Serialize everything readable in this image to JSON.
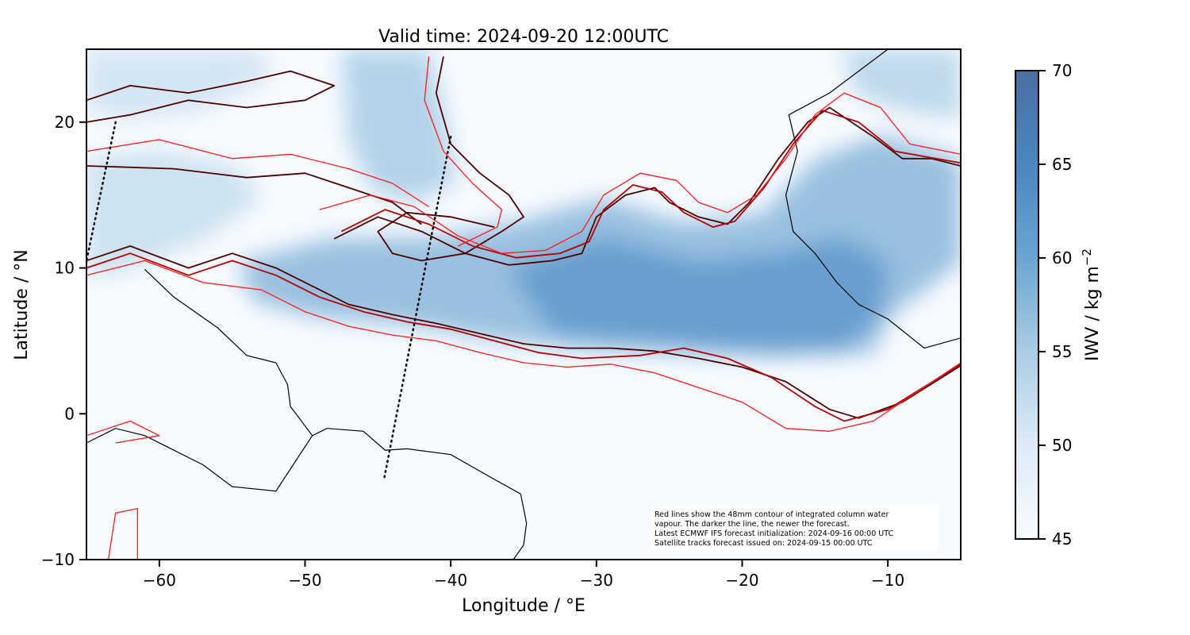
{
  "title": "Valid time: 2024-09-20 12:00UTC",
  "x_axis": {
    "label": "Longitude / °E",
    "ticks": [
      {
        "value": -60,
        "label": "−60"
      },
      {
        "value": -50,
        "label": "−50"
      },
      {
        "value": -40,
        "label": "−40"
      },
      {
        "value": -30,
        "label": "−30"
      },
      {
        "value": -20,
        "label": "−20"
      },
      {
        "value": -10,
        "label": "−10"
      }
    ]
  },
  "y_axis": {
    "label": "Latitude / °N",
    "ticks": [
      {
        "value": 20,
        "label": "20"
      },
      {
        "value": 10,
        "label": "10"
      },
      {
        "value": 0,
        "label": "0"
      },
      {
        "value": -10,
        "label": "−10"
      }
    ]
  },
  "colorbar": {
    "label": "IWV / kg m",
    "label_superscript": "−2",
    "ticks": [
      {
        "value": 70,
        "label": "70"
      },
      {
        "value": 65,
        "label": "65"
      },
      {
        "value": 60,
        "label": "60"
      },
      {
        "value": 55,
        "label": "55"
      },
      {
        "value": 50,
        "label": "50"
      },
      {
        "value": 45,
        "label": "45"
      }
    ],
    "low_color": "#f7fbff",
    "high_color": "#4a6fa0"
  },
  "note": {
    "lines": [
      "Red lines show the 48mm contour of integrated column water",
      "vapour. The darker the line, the newer the forecast.",
      "Latest ECMWF IFS forecast initialization: 2024-09-16 00:00 UTC",
      "Satellite tracks forecast issued on: 2024-09-15 00:00 UTC"
    ]
  },
  "chart_data": {
    "type": "heatmap",
    "xlim": [
      -65,
      -5
    ],
    "ylim": [
      -10,
      25
    ],
    "grid": false,
    "colors": {
      "contour_oldest": "#ff1a1a",
      "contour_mid": "#b30000",
      "contour_newest": "#4d0000",
      "coastline": "#000000",
      "satellite_track": "#000000"
    },
    "satellite_tracks": [
      {
        "points": [
          [
            -63.0,
            20.0
          ],
          [
            -65.0,
            10.5
          ]
        ]
      },
      {
        "points": [
          [
            -40.0,
            19.0
          ],
          [
            -44.6,
            -4.6
          ]
        ]
      }
    ],
    "contours": [
      {
        "shade": "newest",
        "points": [
          [
            -65,
            10.5
          ],
          [
            -62,
            11.5
          ],
          [
            -58,
            10
          ],
          [
            -55,
            11
          ],
          [
            -52,
            10
          ],
          [
            -49,
            8.5
          ],
          [
            -47,
            7.5
          ],
          [
            -44,
            6.8
          ],
          [
            -41,
            6.2
          ],
          [
            -38,
            5.5
          ],
          [
            -35,
            4.8
          ],
          [
            -32,
            4.5
          ],
          [
            -29,
            4.5
          ],
          [
            -26,
            4.3
          ],
          [
            -23,
            3.8
          ],
          [
            -20,
            3.2
          ],
          [
            -17,
            2.2
          ],
          [
            -14,
            0.3
          ],
          [
            -12,
            -0.3
          ],
          [
            -9,
            0.8
          ],
          [
            -5,
            3.3
          ]
        ]
      },
      {
        "shade": "newest",
        "points": [
          [
            -48,
            12
          ],
          [
            -45,
            13.5
          ],
          [
            -42,
            12.5
          ],
          [
            -39,
            11
          ],
          [
            -36,
            10.2
          ],
          [
            -33,
            10.5
          ],
          [
            -31,
            11
          ],
          [
            -30,
            13.5
          ],
          [
            -28,
            15
          ],
          [
            -26,
            15.5
          ],
          [
            -25,
            14.5
          ],
          [
            -23,
            13.5
          ],
          [
            -21,
            13
          ],
          [
            -19.5,
            14.5
          ],
          [
            -17.5,
            17.5
          ],
          [
            -15.5,
            20
          ],
          [
            -14,
            21
          ],
          [
            -11,
            19
          ],
          [
            -9,
            17.5
          ],
          [
            -7,
            17.5
          ],
          [
            -5,
            17
          ]
        ]
      },
      {
        "shade": "newest",
        "points": [
          [
            -65,
            17
          ],
          [
            -59,
            16.8
          ],
          [
            -54,
            16.2
          ],
          [
            -50,
            16.5
          ],
          [
            -47,
            15.5
          ],
          [
            -44,
            14.5
          ],
          [
            -42,
            13
          ]
        ]
      },
      {
        "shade": "newest",
        "points": [
          [
            -40.5,
            24.5
          ],
          [
            -41,
            22
          ],
          [
            -40,
            18.5
          ],
          [
            -38,
            16.5
          ],
          [
            -36,
            15
          ],
          [
            -35,
            13.5
          ],
          [
            -36.5,
            12.5
          ],
          [
            -39,
            11
          ],
          [
            -42,
            10.5
          ],
          [
            -44,
            11
          ],
          [
            -45,
            12.5
          ],
          [
            -43,
            13.8
          ],
          [
            -40,
            13.5
          ],
          [
            -37,
            12.8
          ]
        ]
      },
      {
        "shade": "newest",
        "points": [
          [
            -65,
            21.5
          ],
          [
            -62,
            22.5
          ],
          [
            -58,
            22
          ],
          [
            -54,
            22.8
          ],
          [
            -51,
            23.5
          ],
          [
            -48,
            22.5
          ],
          [
            -50,
            21.5
          ],
          [
            -54,
            21
          ],
          [
            -58,
            21.5
          ],
          [
            -62,
            20.5
          ],
          [
            -65,
            20
          ]
        ]
      },
      {
        "shade": "mid",
        "points": [
          [
            -65,
            10
          ],
          [
            -62,
            11
          ],
          [
            -58,
            9.5
          ],
          [
            -55,
            10.5
          ],
          [
            -52,
            9.5
          ],
          [
            -49,
            8
          ],
          [
            -46,
            7
          ],
          [
            -43,
            6.3
          ],
          [
            -40,
            5.8
          ],
          [
            -37,
            5
          ],
          [
            -34,
            4.2
          ],
          [
            -31,
            3.8
          ],
          [
            -27,
            4
          ],
          [
            -24,
            4.5
          ],
          [
            -21,
            3.8
          ],
          [
            -18,
            2.5
          ],
          [
            -15,
            0.5
          ],
          [
            -13,
            -0.5
          ],
          [
            -10,
            0.3
          ],
          [
            -5,
            3.4
          ]
        ]
      },
      {
        "shade": "mid",
        "points": [
          [
            -47.5,
            12.5
          ],
          [
            -44.5,
            14
          ],
          [
            -41.5,
            13
          ],
          [
            -38.5,
            11.5
          ],
          [
            -35.5,
            10.7
          ],
          [
            -32.5,
            11
          ],
          [
            -30.5,
            11.8
          ],
          [
            -29.5,
            14
          ],
          [
            -27.5,
            15.7
          ],
          [
            -25.5,
            15.2
          ],
          [
            -24,
            13.8
          ],
          [
            -22,
            12.8
          ],
          [
            -20.5,
            13.2
          ],
          [
            -18.5,
            15.5
          ],
          [
            -16.5,
            18.5
          ],
          [
            -14.5,
            20.8
          ],
          [
            -12,
            20
          ],
          [
            -9.5,
            18
          ],
          [
            -5,
            17.2
          ]
        ]
      },
      {
        "shade": "oldest",
        "points": [
          [
            -65,
            9.5
          ],
          [
            -61,
            10.5
          ],
          [
            -57,
            9
          ],
          [
            -53,
            8.5
          ],
          [
            -50,
            7
          ],
          [
            -47,
            6
          ],
          [
            -44,
            5.4
          ],
          [
            -41,
            5
          ],
          [
            -38,
            4.2
          ],
          [
            -35,
            3.5
          ],
          [
            -32,
            3.2
          ],
          [
            -29,
            3.4
          ],
          [
            -26,
            2.8
          ],
          [
            -23,
            1.8
          ],
          [
            -20,
            0.8
          ],
          [
            -17,
            -1
          ],
          [
            -14,
            -1.2
          ],
          [
            -11,
            -0.5
          ],
          [
            -8,
            1.5
          ],
          [
            -5,
            3.5
          ]
        ]
      },
      {
        "shade": "oldest",
        "points": [
          [
            -49,
            14
          ],
          [
            -45.5,
            15
          ],
          [
            -42.5,
            14.2
          ],
          [
            -39.5,
            12.2
          ],
          [
            -36.5,
            11
          ],
          [
            -33.5,
            11.2
          ],
          [
            -31,
            12.5
          ],
          [
            -29.5,
            15
          ],
          [
            -27,
            16.5
          ],
          [
            -24.5,
            16
          ],
          [
            -23,
            14.5
          ],
          [
            -21,
            13.8
          ],
          [
            -19,
            15
          ],
          [
            -17,
            17.5
          ],
          [
            -15,
            20.5
          ],
          [
            -13,
            22
          ],
          [
            -10.5,
            21
          ],
          [
            -8.5,
            18.5
          ],
          [
            -5,
            17.8
          ]
        ]
      },
      {
        "shade": "oldest",
        "points": [
          [
            -65,
            18
          ],
          [
            -60,
            18.8
          ],
          [
            -55,
            17.5
          ],
          [
            -51,
            17.8
          ],
          [
            -47,
            16.8
          ],
          [
            -44,
            15.8
          ],
          [
            -41.5,
            14.2
          ]
        ]
      },
      {
        "shade": "oldest",
        "points": [
          [
            -41.5,
            24.5
          ],
          [
            -41.8,
            21.5
          ],
          [
            -40.5,
            18
          ],
          [
            -38.5,
            15.8
          ],
          [
            -36.5,
            14
          ],
          [
            -36.8,
            12.8
          ],
          [
            -39.5,
            11.5
          ]
        ]
      },
      {
        "shade": "oldest",
        "points": [
          [
            -65,
            -1.5
          ],
          [
            -62,
            -0.5
          ],
          [
            -60,
            -1.5
          ],
          [
            -63,
            -2
          ]
        ]
      },
      {
        "shade": "oldest",
        "points": [
          [
            -63.5,
            -10
          ],
          [
            -63,
            -6.8
          ],
          [
            -61.5,
            -6.5
          ],
          [
            -61.5,
            -10
          ]
        ]
      }
    ],
    "coastlines": [
      {
        "points": [
          [
            -65,
            -2
          ],
          [
            -63,
            -1
          ],
          [
            -61,
            -1.5
          ],
          [
            -59,
            -2.5
          ],
          [
            -57,
            -3.5
          ],
          [
            -55,
            -5
          ],
          [
            -52,
            -5.3
          ],
          [
            -49.5,
            -1.5
          ],
          [
            -48.5,
            -1
          ],
          [
            -46,
            -1.2
          ],
          [
            -44.5,
            -2.5
          ],
          [
            -43,
            -2.4
          ],
          [
            -40,
            -2.8
          ],
          [
            -37,
            -4.5
          ],
          [
            -35.2,
            -5.5
          ],
          [
            -34.8,
            -7.5
          ],
          [
            -35,
            -9
          ],
          [
            -35.7,
            -10
          ]
        ]
      },
      {
        "points": [
          [
            -49.5,
            -1.5
          ],
          [
            -51,
            0.5
          ],
          [
            -51.2,
            2
          ],
          [
            -52,
            3.5
          ],
          [
            -54,
            4
          ],
          [
            -56,
            5.9
          ],
          [
            -59,
            8
          ],
          [
            -61,
            9.9
          ]
        ]
      },
      {
        "points": [
          [
            -10,
            25
          ],
          [
            -14,
            22
          ],
          [
            -16.8,
            20.5
          ],
          [
            -16.2,
            18
          ],
          [
            -17,
            15
          ],
          [
            -16.5,
            12.5
          ],
          [
            -15,
            11
          ],
          [
            -13.5,
            9
          ],
          [
            -12,
            7.5
          ],
          [
            -10,
            6.5
          ],
          [
            -7.5,
            4.5
          ],
          [
            -5,
            5.2
          ]
        ]
      }
    ]
  }
}
